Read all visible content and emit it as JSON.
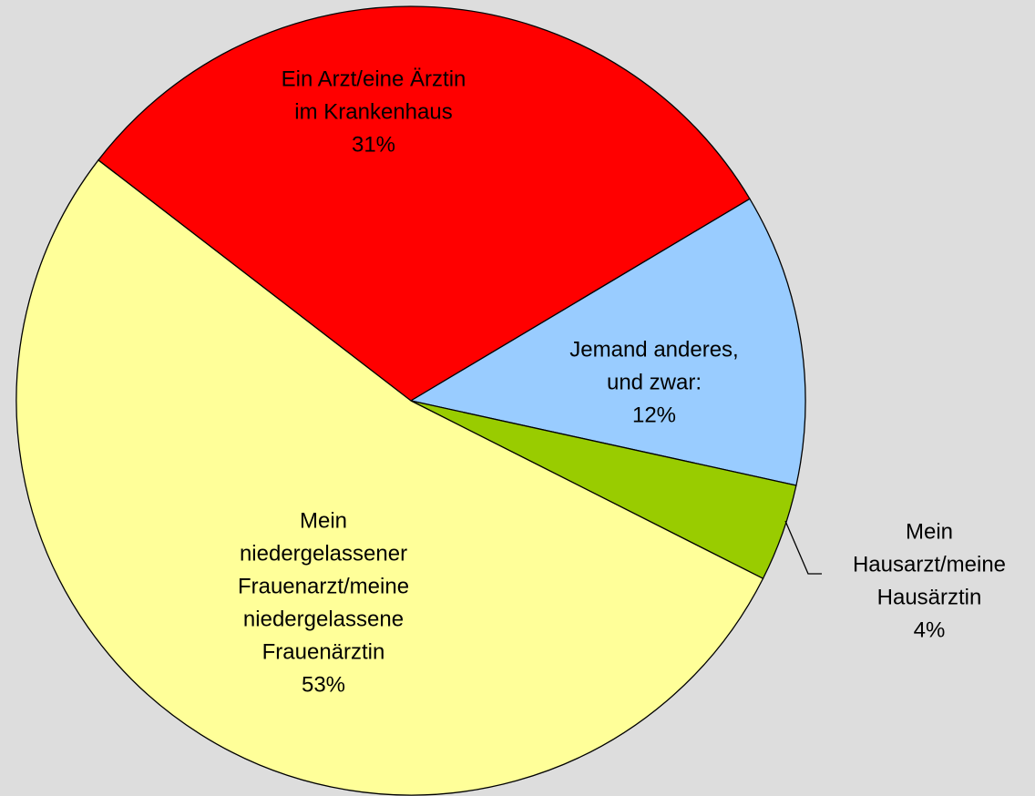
{
  "chart_data": {
    "type": "pie",
    "categories": [
      [
        "Ein Arzt/eine Ärztin",
        "im Krankenhaus"
      ],
      [
        "Jemand anderes,",
        "und zwar:"
      ],
      [
        "Mein",
        "Hausarzt/meine",
        "Hausärztin"
      ],
      [
        "Mein",
        "niedergelassener",
        "Frauenarzt/meine",
        "niedergelassene",
        "Frauenärztin"
      ]
    ],
    "values": [
      31,
      12,
      4,
      53
    ],
    "value_labels": [
      "31%",
      "12%",
      "4%",
      "53%"
    ],
    "colors": [
      "#ff0000",
      "#99ccff",
      "#99cc00",
      "#ffff99"
    ]
  }
}
